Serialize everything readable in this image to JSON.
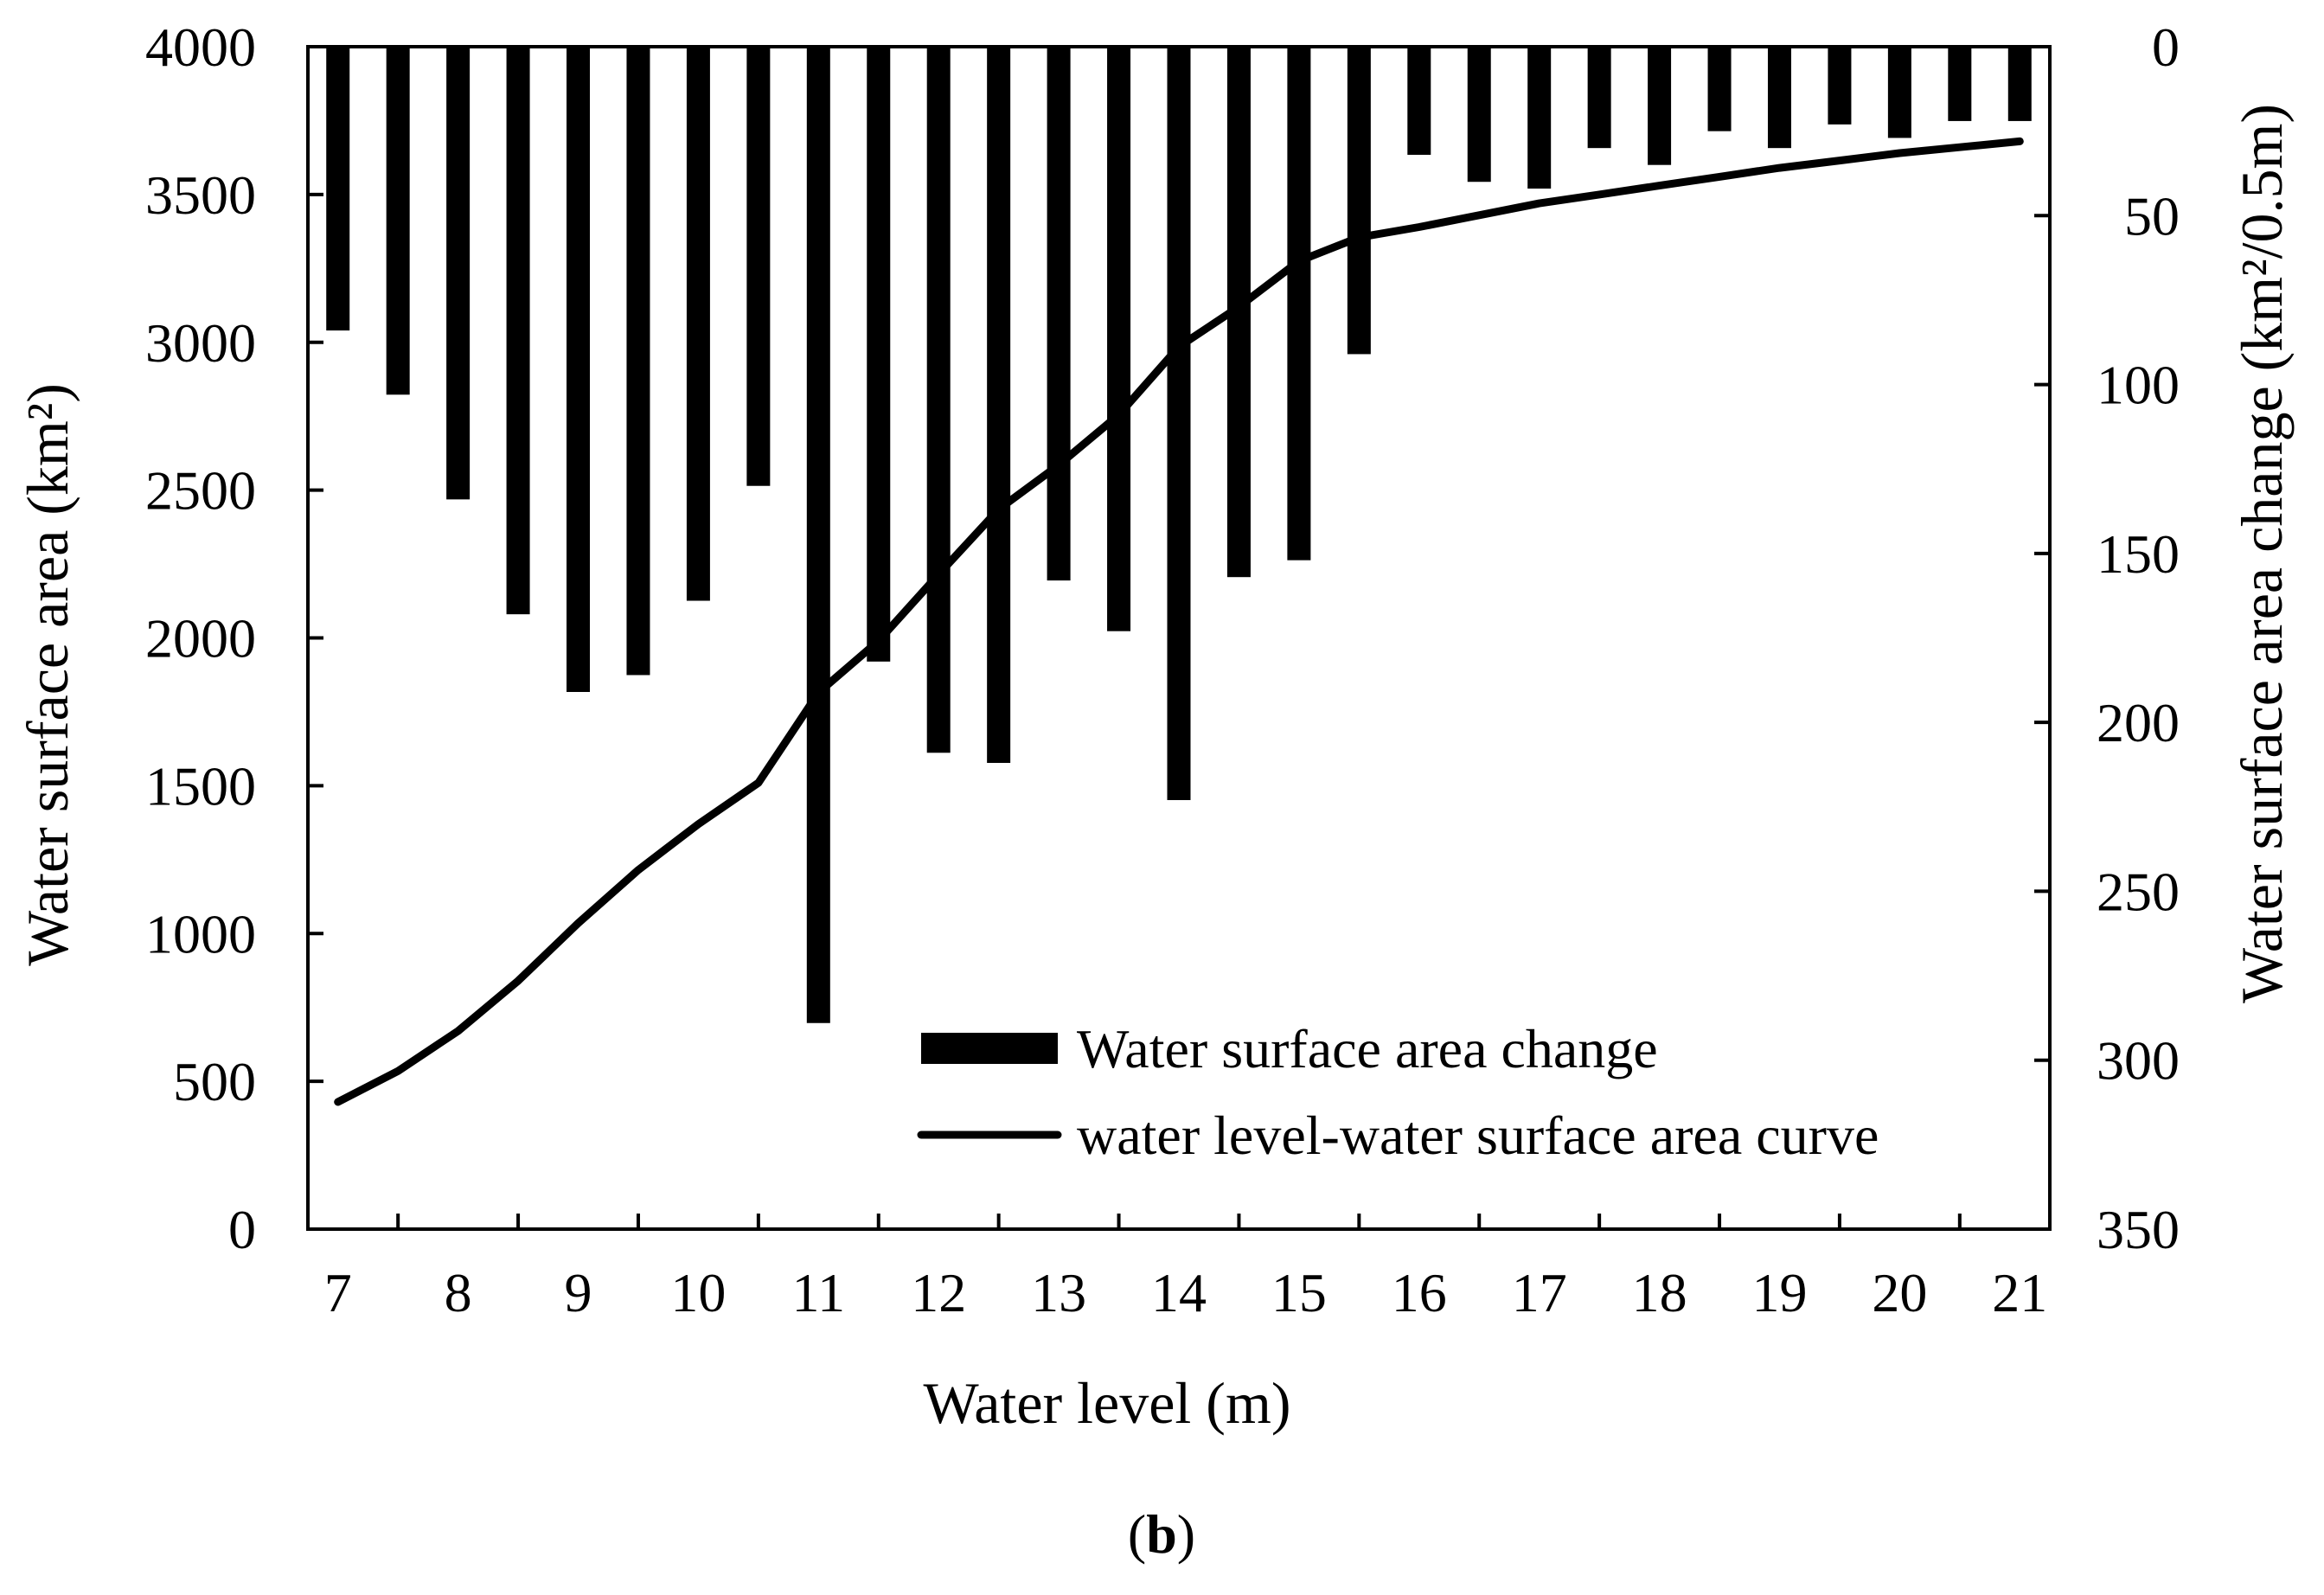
{
  "chart_data": {
    "type": "bar+line",
    "caption": {
      "open": "(",
      "label": "b",
      "close": ")"
    },
    "xlabel": "Water level (m)",
    "ylabel_left": "Water surface area (km²)",
    "ylabel_right": "Water surface area change (km²/0.5m)",
    "x_range": [
      6.75,
      21.25
    ],
    "x_ticks": [
      "7",
      "8",
      "9",
      "10",
      "11",
      "12",
      "13",
      "14",
      "15",
      "16",
      "17",
      "18",
      "19",
      "20",
      "21"
    ],
    "y_left_range": [
      0,
      4000
    ],
    "y_left_ticks": [
      "0",
      "500",
      "1000",
      "1500",
      "2000",
      "2500",
      "3000",
      "3500",
      "4000"
    ],
    "y_right_range": [
      0,
      350
    ],
    "y_right_inverted": true,
    "y_right_ticks": [
      "0",
      "50",
      "100",
      "150",
      "200",
      "250",
      "300",
      "350"
    ],
    "legend_position": "bottom-right",
    "series": [
      {
        "name": "Water surface area change",
        "type": "bar",
        "axis": "right",
        "x": [
          7,
          7.5,
          8,
          8.5,
          9,
          9.5,
          10,
          10.5,
          11,
          11.5,
          12,
          12.5,
          13,
          13.5,
          14,
          14.5,
          15,
          15.5,
          16,
          16.5,
          17,
          17.5,
          18,
          18.5,
          19,
          19.5,
          20,
          20.5,
          21
        ],
        "values": [
          84,
          103,
          134,
          168,
          191,
          186,
          164,
          130,
          289,
          182,
          209,
          212,
          158,
          173,
          223,
          157,
          152,
          91,
          32,
          40,
          42,
          30,
          35,
          25,
          30,
          23,
          27,
          22,
          22
        ]
      },
      {
        "name": "water level-water surface area curve",
        "type": "line",
        "axis": "left",
        "x": [
          7,
          7.5,
          8,
          8.5,
          9,
          9.5,
          10,
          10.5,
          11,
          11.5,
          12,
          12.5,
          13,
          13.5,
          14,
          14.5,
          15,
          15.5,
          16,
          16.5,
          17,
          17.5,
          18,
          18.5,
          19,
          19.5,
          20,
          20.5,
          21
        ],
        "values": [
          430,
          535,
          670,
          840,
          1035,
          1215,
          1370,
          1510,
          1815,
          1990,
          2215,
          2435,
          2585,
          2755,
          2985,
          3120,
          3275,
          3355,
          3390,
          3430,
          3470,
          3500,
          3530,
          3560,
          3590,
          3615,
          3640,
          3660,
          3680
        ]
      }
    ]
  }
}
